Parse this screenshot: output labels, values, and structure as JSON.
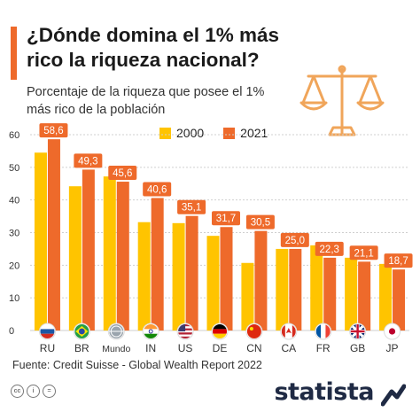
{
  "title": "¿Dónde domina el 1% más rico la riqueza nacional?",
  "subtitle": "Porcentaje de la riqueza que posee el 1% más rico de la población",
  "source": "Fuente: Credit Suisse - Global Wealth Report 2022",
  "brand": "statista",
  "icons": [
    "scale-icon",
    "creative-commons-icon",
    "attribution-icon",
    "no-derivatives-icon",
    "statista-logo-icon"
  ],
  "colors": {
    "accent": "#ee6a2b",
    "y2000": "#ffc400",
    "y2021": "#ee6a2b",
    "brand": "#1f2a44"
  },
  "chart_data": {
    "type": "bar",
    "categories": [
      "RU",
      "BR",
      "Mundo",
      "IN",
      "US",
      "DE",
      "CN",
      "CA",
      "FR",
      "GB",
      "JP"
    ],
    "flags": [
      "russia-flag-icon",
      "brazil-flag-icon",
      "world-globe-icon",
      "india-flag-icon",
      "usa-flag-icon",
      "germany-flag-icon",
      "china-flag-icon",
      "canada-flag-icon",
      "france-flag-icon",
      "uk-flag-icon",
      "japan-flag-icon"
    ],
    "series": [
      {
        "name": "2000",
        "values": [
          54.5,
          44.2,
          47.2,
          33.2,
          32.9,
          29.0,
          20.7,
          25.0,
          26.1,
          22.3,
          20.4
        ]
      },
      {
        "name": "2021",
        "values": [
          58.6,
          49.3,
          45.6,
          40.6,
          35.1,
          31.7,
          30.5,
          25.0,
          22.3,
          21.1,
          18.7
        ]
      }
    ],
    "data_labels": [
      "58,6",
      "49,3",
      "45,6",
      "40,6",
      "35,1",
      "31,7",
      "30,5",
      "25,0",
      "22,3",
      "21,1",
      "18,7"
    ],
    "y_ticks": [
      "0",
      "10",
      "20",
      "30",
      "40",
      "50",
      "60"
    ],
    "ylim": [
      0,
      60
    ],
    "grid": true,
    "legend_position": "top"
  }
}
